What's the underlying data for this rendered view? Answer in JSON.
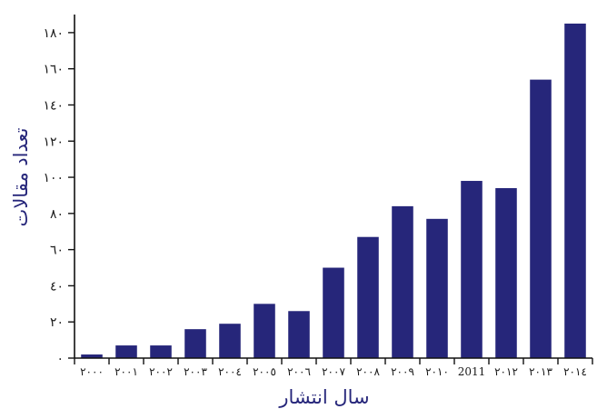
{
  "chart_data": {
    "type": "bar",
    "categories": [
      "۲۰۰۰",
      "۲۰۰۱",
      "۲۰۰۲",
      "۲۰۰۳",
      "۲۰۰٤",
      "۲۰۰٥",
      "۲۰۰٦",
      "۲۰۰۷",
      "۲۰۰۸",
      "۲۰۰۹",
      "۲۰۱۰",
      "2011",
      "۲۰۱۲",
      "۲۰۱۳",
      "۲۰۱٤"
    ],
    "values": [
      2,
      7,
      7,
      16,
      19,
      30,
      26,
      50,
      67,
      84,
      77,
      98,
      94,
      154,
      185
    ],
    "title": "",
    "xlabel": "سال انتشار",
    "ylabel": "تعداد مقالات",
    "ylim": [
      0,
      190
    ],
    "yticks": [
      0,
      20,
      40,
      60,
      80,
      100,
      120,
      140,
      160,
      180
    ],
    "ytick_labels": [
      "۰",
      "۲۰",
      "٤۰",
      "٦۰",
      "۸۰",
      "۱۰۰",
      "۱۲۰",
      "۱٤۰",
      "۱٦۰",
      "۱۸۰"
    ],
    "bar_color": "#26267a",
    "grid": false,
    "legend": "none"
  }
}
